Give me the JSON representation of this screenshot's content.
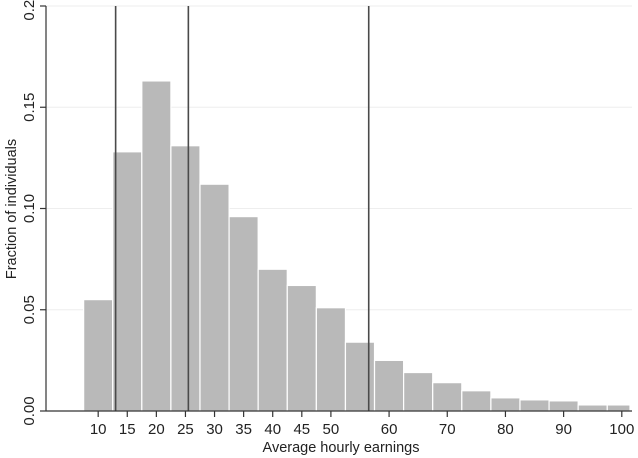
{
  "chart_data": {
    "type": "bar",
    "xlabel": "Average hourly earnings",
    "ylabel": "Fraction of individuals",
    "xlim": [
      3,
      101
    ],
    "ylim": [
      0,
      0.2
    ],
    "x_ticks": [
      10,
      15,
      20,
      25,
      30,
      35,
      40,
      45,
      50,
      60,
      70,
      80,
      90,
      100
    ],
    "x_tick_labels": [
      "10",
      "15",
      "20",
      "25",
      "30",
      "35",
      "40",
      "45",
      "50",
      "60",
      "70",
      "80",
      "90",
      "100"
    ],
    "y_ticks": [
      0,
      0.05,
      0.1,
      0.15,
      0.2
    ],
    "y_tick_labels": [
      "0.00",
      "0.05",
      "0.10",
      "0.15",
      "0.20"
    ],
    "bins": [
      {
        "start": 7.5,
        "end": 12.5,
        "value": 0.055
      },
      {
        "start": 12.5,
        "end": 17.5,
        "value": 0.128
      },
      {
        "start": 17.5,
        "end": 22.5,
        "value": 0.163
      },
      {
        "start": 22.5,
        "end": 27.5,
        "value": 0.131
      },
      {
        "start": 27.5,
        "end": 32.5,
        "value": 0.112
      },
      {
        "start": 32.5,
        "end": 37.5,
        "value": 0.096
      },
      {
        "start": 37.5,
        "end": 42.5,
        "value": 0.07
      },
      {
        "start": 42.5,
        "end": 47.5,
        "value": 0.062
      },
      {
        "start": 47.5,
        "end": 52.5,
        "value": 0.051
      },
      {
        "start": 52.5,
        "end": 57.5,
        "value": 0.034
      },
      {
        "start": 57.5,
        "end": 62.5,
        "value": 0.025
      },
      {
        "start": 62.5,
        "end": 67.5,
        "value": 0.019
      },
      {
        "start": 67.5,
        "end": 72.5,
        "value": 0.014
      },
      {
        "start": 72.5,
        "end": 77.5,
        "value": 0.01
      },
      {
        "start": 77.5,
        "end": 82.5,
        "value": 0.0065
      },
      {
        "start": 82.5,
        "end": 87.5,
        "value": 0.0055
      },
      {
        "start": 87.5,
        "end": 92.5,
        "value": 0.005
      },
      {
        "start": 92.5,
        "end": 97.5,
        "value": 0.003
      },
      {
        "start": 97.5,
        "end": 102.5,
        "value": 0.003
      }
    ],
    "vertical_lines": [
      13,
      25.5,
      56.5
    ],
    "grid": true,
    "legend": "none",
    "colors": {
      "bar": "#b9b9b9",
      "bar_edge": "#ffffff",
      "reference_line": "#4a4a4a",
      "grid": "#eeeeee",
      "axis": "#333333"
    }
  }
}
